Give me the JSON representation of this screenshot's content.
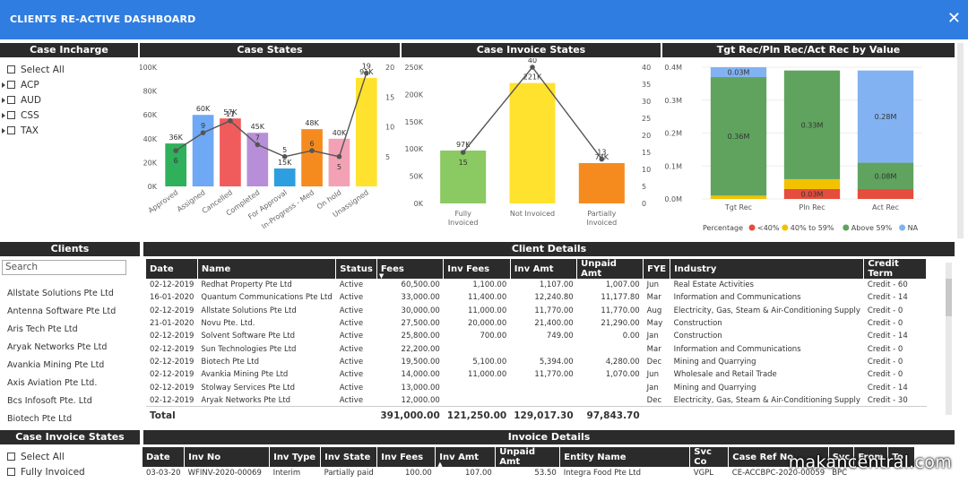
{
  "app": {
    "title": "CLIENTS RE-ACTIVE DASHBOARD",
    "close_glyph": "✕"
  },
  "case_incharge": {
    "header": "Case Incharge",
    "select_all": "Select All",
    "items": [
      "ACP",
      "AUD",
      "CSS",
      "TAX"
    ]
  },
  "case_states": {
    "header": "Case States"
  },
  "case_invoice_states_chart": {
    "header": "Case Invoice States"
  },
  "tgt_chart": {
    "header": "Tgt Rec/Pln Rec/Act Rec by Value"
  },
  "clients": {
    "header": "Clients",
    "search_placeholder": "Search",
    "items": [
      "Allstate Solutions Pte Ltd",
      "Antenna Software Pte Ltd",
      "Aris Tech Pte Ltd",
      "Aryak Networks Pte Ltd",
      "Avankia Mining Pte Ltd",
      "Axis Aviation Pte Ltd.",
      "Bcs Infosoft Pte. Ltd",
      "Biotech Pte Ltd"
    ]
  },
  "client_details": {
    "header": "Client Details",
    "columns": [
      "Date",
      "Name",
      "Status",
      "Fees",
      "Inv Fees",
      "Inv Amt",
      "Unpaid Amt",
      "FYE",
      "Industry",
      "Credit Term"
    ],
    "rows": [
      [
        "02-12-2019",
        "Redhat Property Pte Ltd",
        "Active",
        "60,500.00",
        "1,100.00",
        "1,107.00",
        "1,007.00",
        "Jun",
        "Real Estate Activities",
        "Credit - 60"
      ],
      [
        "16-01-2020",
        "Quantum Communications Pte Ltd",
        "Active",
        "33,000.00",
        "11,400.00",
        "12,240.80",
        "11,177.80",
        "Mar",
        "Information and Communications",
        "Credit - 14"
      ],
      [
        "02-12-2019",
        "Allstate Solutions Pte Ltd",
        "Active",
        "30,000.00",
        "11,000.00",
        "11,770.00",
        "11,770.00",
        "Aug",
        "Electricity, Gas, Steam & Air-Conditioning Supply",
        "Credit - 0"
      ],
      [
        "21-01-2020",
        "Novu Pte. Ltd.",
        "Active",
        "27,500.00",
        "20,000.00",
        "21,400.00",
        "21,290.00",
        "May",
        "Construction",
        "Credit - 0"
      ],
      [
        "02-12-2019",
        "Solvent Software Pte Ltd",
        "Active",
        "25,800.00",
        "700.00",
        "749.00",
        "0.00",
        "Jan",
        "Construction",
        "Credit - 14"
      ],
      [
        "02-12-2019",
        "Sun Technologies Pte Ltd",
        "Active",
        "22,200.00",
        "",
        "",
        "",
        "Mar",
        "Information and Communications",
        "Credit - 0"
      ],
      [
        "02-12-2019",
        "Biotech Pte Ltd",
        "Active",
        "19,500.00",
        "5,100.00",
        "5,394.00",
        "4,280.00",
        "Dec",
        "Mining and Quarrying",
        "Credit - 0"
      ],
      [
        "02-12-2019",
        "Avankia Mining Pte Ltd",
        "Active",
        "14,000.00",
        "11,000.00",
        "11,770.00",
        "1,070.00",
        "Jun",
        "Wholesale and Retail Trade",
        "Credit - 0"
      ],
      [
        "02-12-2019",
        "Stolway Services Pte Ltd",
        "Active",
        "13,000.00",
        "",
        "",
        "",
        "Jan",
        "Mining and Quarrying",
        "Credit - 14"
      ],
      [
        "02-12-2019",
        "Aryak Networks Pte Ltd",
        "Active",
        "12,000.00",
        "",
        "",
        "",
        "Dec",
        "Electricity, Gas, Steam & Air-Conditioning Supply",
        "Credit - 30"
      ]
    ],
    "total": {
      "label": "Total",
      "fees": "391,000.00",
      "inv_fees": "121,250.00",
      "inv_amt": "129,017.30",
      "unpaid_amt": "97,843.70"
    }
  },
  "case_invoice_states_slicer": {
    "header": "Case Invoice States",
    "select_all": "Select All",
    "items": [
      "Fully Invoiced"
    ]
  },
  "invoice_details": {
    "header": "Invoice Details",
    "columns": [
      "Date",
      "Inv No",
      "Inv Type",
      "Inv State",
      "Inv Fees",
      "Inv Amt",
      "Unpaid Amt",
      "Entity Name",
      "Svc Co",
      "Case Ref No",
      "Svc",
      "From",
      "To"
    ],
    "rows": [
      [
        "03-03-20",
        "WFINV-2020-00069",
        "Interim",
        "Partially paid",
        "100.00",
        "107.00",
        "53.50",
        "Integra Food Pte Ltd",
        "VGPL",
        "CE-ACCBPC-2020-00059",
        "BPC",
        "",
        ""
      ]
    ]
  },
  "watermark": "makancentral.com",
  "chart_data": [
    {
      "type": "bar",
      "title": "Case States",
      "categories": [
        "Approved",
        "Assigned",
        "Cancelled",
        "Completed",
        "For Approval",
        "In-Progress - Med",
        "On hold",
        "Unassigned"
      ],
      "series": [
        {
          "values": [
            36000,
            60000,
            57000,
            45000,
            15000,
            48000,
            40000,
            91000
          ],
          "data_labels": [
            "36K",
            "60K",
            "57K",
            "45K",
            "15K",
            "48K",
            "40K",
            "91K"
          ],
          "axis": "left"
        },
        {
          "type": "line",
          "values": [
            6,
            9,
            11,
            7,
            5,
            6,
            5,
            19
          ],
          "axis": "right"
        }
      ],
      "colors": [
        "#2fb05b",
        "#6fa8f5",
        "#f05c5c",
        "#b78fd9",
        "#2d9ee0",
        "#f58b1f",
        "#f2a2b4",
        "#ffe22e"
      ],
      "ylim": [
        0,
        100000
      ],
      "y_ticks": [
        "0K",
        "20K",
        "40K",
        "60K",
        "80K",
        "100K"
      ],
      "y2lim": [
        0,
        20
      ],
      "y2_ticks": [
        "5",
        "10",
        "15",
        "20"
      ]
    },
    {
      "type": "bar",
      "title": "Case Invoice States",
      "categories": [
        "Fully Invoiced",
        "Not Invoiced",
        "Partially Invoiced"
      ],
      "series": [
        {
          "values": [
            97000,
            221000,
            74000
          ],
          "data_labels": [
            "97K",
            "221K",
            "74K"
          ],
          "axis": "left"
        },
        {
          "type": "line",
          "values": [
            15,
            40,
            13
          ],
          "axis": "right"
        }
      ],
      "colors": [
        "#8bc962",
        "#ffe22e",
        "#f58b1f"
      ],
      "ylim": [
        0,
        250000
      ],
      "y_ticks": [
        "0K",
        "50K",
        "100K",
        "150K",
        "200K",
        "250K"
      ],
      "y2lim": [
        0,
        40
      ],
      "y2_ticks": [
        "0",
        "5",
        "10",
        "15",
        "20",
        "25",
        "30",
        "35",
        "40"
      ]
    },
    {
      "type": "bar",
      "stacked": true,
      "title": "Tgt Rec/Pln Rec/Act Rec by Value",
      "categories": [
        "Tgt Rec",
        "Pln Rec",
        "Act Rec"
      ],
      "series": [
        {
          "name": "<40%",
          "values": [
            0,
            0.03,
            0.03
          ],
          "color": "#e54d3c"
        },
        {
          "name": "40% to 59%",
          "values": [
            0.01,
            0.03,
            0
          ],
          "color": "#f2c200"
        },
        {
          "name": "Above 59%",
          "values": [
            0.36,
            0.33,
            0.08
          ],
          "color": "#5fa35f"
        },
        {
          "name": "NA",
          "values": [
            0.03,
            0,
            0.28
          ],
          "color": "#82b2f2"
        }
      ],
      "data_labels": [
        [
          "",
          "",
          "0.36M",
          "0.03M"
        ],
        [
          "0.03M",
          "",
          "0.33M",
          ""
        ],
        [
          "",
          "",
          "0.08M",
          "0.28M"
        ]
      ],
      "ylim": [
        0,
        0.4
      ],
      "y_ticks": [
        "0.0M",
        "0.1M",
        "0.2M",
        "0.3M",
        "0.4M"
      ],
      "legend_title": "Percentage",
      "legend": "bottom"
    }
  ]
}
